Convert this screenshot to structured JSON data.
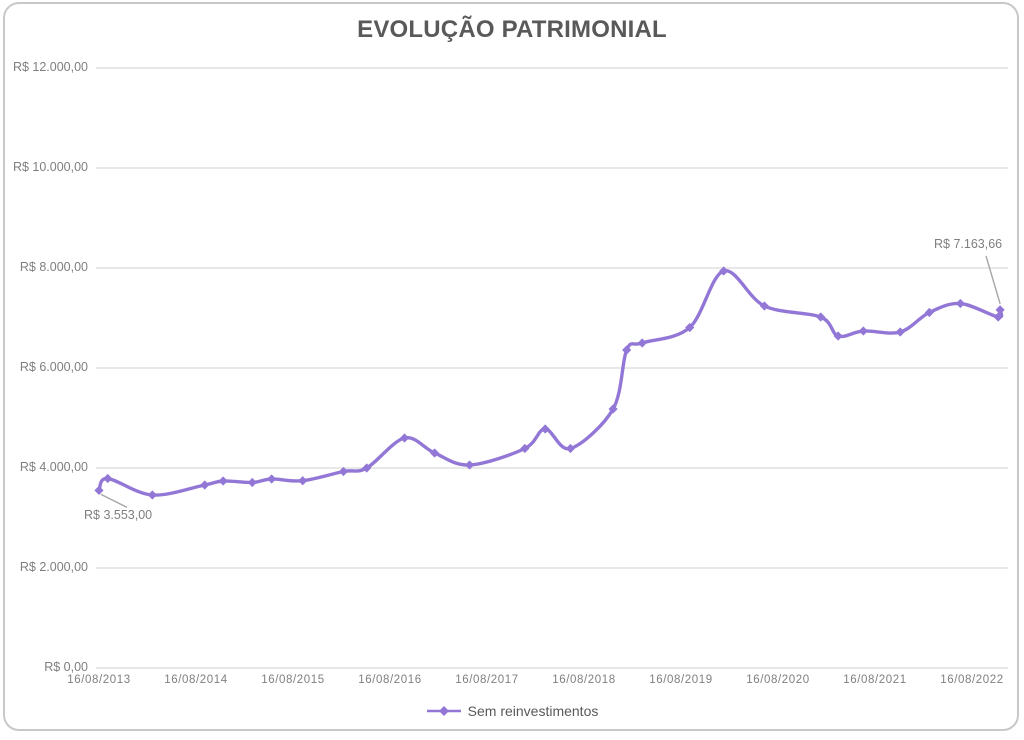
{
  "chart_data": {
    "type": "line",
    "title": "EVOLUÇÃO PATRIMONIAL",
    "legend_position": "bottom",
    "grid": true,
    "smooth_line": true,
    "marker": "diamond",
    "colors": {
      "line": "#9377d6",
      "grid": "#d9d9d9",
      "axis_text": "#7f7f7f",
      "title_text": "#595959",
      "callout": "#a6a6a6"
    },
    "y_axis": {
      "min": 0,
      "max": 12000,
      "tick_labels": [
        "R$ 12.000,00",
        "R$ 10.000,00",
        "R$ 8.000,00",
        "R$ 6.000,00",
        "R$ 4.000,00",
        "R$ 2.000,00",
        "R$ 0,00"
      ],
      "tick_values": [
        12000,
        10000,
        8000,
        6000,
        4000,
        2000,
        0
      ]
    },
    "x_axis": {
      "tick_labels": [
        "16/08/2013",
        "16/08/2014",
        "16/08/2015",
        "16/08/2016",
        "16/08/2017",
        "16/08/2018",
        "16/08/2019",
        "16/08/2020",
        "16/08/2021",
        "16/08/2022"
      ]
    },
    "series": [
      {
        "name": "Sem reinvestimentos",
        "points_note": "x = years after 16/08/2013 tick (estimated), v = R$ value (estimated from gridlines; first and last values labeled on chart)",
        "points": [
          [
            0.0,
            3553
          ],
          [
            0.09,
            3790
          ],
          [
            0.55,
            3460
          ],
          [
            1.09,
            3660
          ],
          [
            1.28,
            3740
          ],
          [
            1.58,
            3710
          ],
          [
            1.78,
            3780
          ],
          [
            2.1,
            3745
          ],
          [
            2.52,
            3930
          ],
          [
            2.76,
            4000
          ],
          [
            3.15,
            4600
          ],
          [
            3.46,
            4300
          ],
          [
            3.82,
            4060
          ],
          [
            4.39,
            4390
          ],
          [
            4.6,
            4780
          ],
          [
            4.86,
            4390
          ],
          [
            5.3,
            5180
          ],
          [
            5.44,
            6360
          ],
          [
            5.6,
            6500
          ],
          [
            6.09,
            6810
          ],
          [
            6.44,
            7940
          ],
          [
            6.86,
            7240
          ],
          [
            7.44,
            7020
          ],
          [
            7.62,
            6640
          ],
          [
            7.88,
            6740
          ],
          [
            8.26,
            6720
          ],
          [
            8.56,
            7110
          ],
          [
            8.88,
            7290
          ],
          [
            9.27,
            7020
          ],
          [
            9.29,
            7163.66
          ]
        ]
      }
    ],
    "annotations": [
      {
        "text": "R$ 3.553,00",
        "point_index": 0
      },
      {
        "text": "R$ 7.163,66",
        "point_index": 29
      }
    ],
    "legend": [
      {
        "name": "Sem reinvestimentos",
        "color": "#9377d6"
      }
    ]
  }
}
